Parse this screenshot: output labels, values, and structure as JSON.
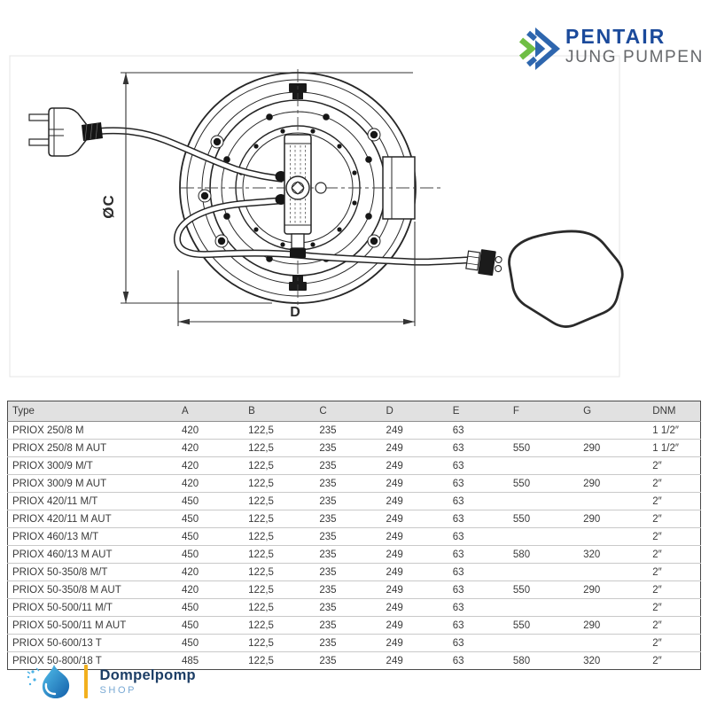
{
  "pentair": {
    "name": "PENTAIR",
    "subtitle": "JUNG PUMPEN"
  },
  "drawing": {
    "dim_diameter_label": "ØC",
    "dim_width_label": "D"
  },
  "table": {
    "columns": [
      "Type",
      "A",
      "B",
      "C",
      "D",
      "E",
      "F",
      "G",
      "DNM"
    ],
    "rows": [
      [
        "PRIOX 250/8 M",
        "420",
        "122,5",
        "235",
        "249",
        "63",
        "",
        "",
        "1 1/2″"
      ],
      [
        "PRIOX 250/8 M AUT",
        "420",
        "122,5",
        "235",
        "249",
        "63",
        "550",
        "290",
        "1 1/2″"
      ],
      [
        "PRIOX 300/9 M/T",
        "420",
        "122,5",
        "235",
        "249",
        "63",
        "",
        "",
        "2″"
      ],
      [
        "PRIOX 300/9 M AUT",
        "420",
        "122,5",
        "235",
        "249",
        "63",
        "550",
        "290",
        "2″"
      ],
      [
        "PRIOX 420/11 M/T",
        "450",
        "122,5",
        "235",
        "249",
        "63",
        "",
        "",
        "2″"
      ],
      [
        "PRIOX 420/11 M AUT",
        "450",
        "122,5",
        "235",
        "249",
        "63",
        "550",
        "290",
        "2″"
      ],
      [
        "PRIOX 460/13 M/T",
        "450",
        "122,5",
        "235",
        "249",
        "63",
        "",
        "",
        "2″"
      ],
      [
        "PRIOX 460/13 M AUT",
        "450",
        "122,5",
        "235",
        "249",
        "63",
        "580",
        "320",
        "2″"
      ],
      [
        "PRIOX 50-350/8 M/T",
        "420",
        "122,5",
        "235",
        "249",
        "63",
        "",
        "",
        "2″"
      ],
      [
        "PRIOX 50-350/8 M AUT",
        "420",
        "122,5",
        "235",
        "249",
        "63",
        "550",
        "290",
        "2″"
      ],
      [
        "PRIOX 50-500/11 M/T",
        "450",
        "122,5",
        "235",
        "249",
        "63",
        "",
        "",
        "2″"
      ],
      [
        "PRIOX 50-500/11 M AUT",
        "450",
        "122,5",
        "235",
        "249",
        "63",
        "550",
        "290",
        "2″"
      ],
      [
        "PRIOX 50-600/13 T",
        "450",
        "122,5",
        "235",
        "249",
        "63",
        "",
        "",
        "2″"
      ],
      [
        "PRIOX 50-800/18 T",
        "485",
        "122,5",
        "235",
        "249",
        "63",
        "580",
        "320",
        "2″"
      ]
    ]
  },
  "shop_logo": {
    "brand": "Dompelpomp",
    "sub": "SHOP"
  },
  "icons": {
    "pentair-mark": "double-chevron-arrow",
    "dompelpomp-drop": "water-drop-with-splash"
  },
  "colors": {
    "pentair_blue": "#1b4a9b",
    "pentair_green": "#6fbe44",
    "pentair_gray": "#66686b",
    "shop_navy": "#1d3e66",
    "shop_light_blue": "#79a9d4",
    "shop_gold": "#f2b01e",
    "table_header_bg": "#e1e1e1",
    "line_color": "#262626"
  }
}
